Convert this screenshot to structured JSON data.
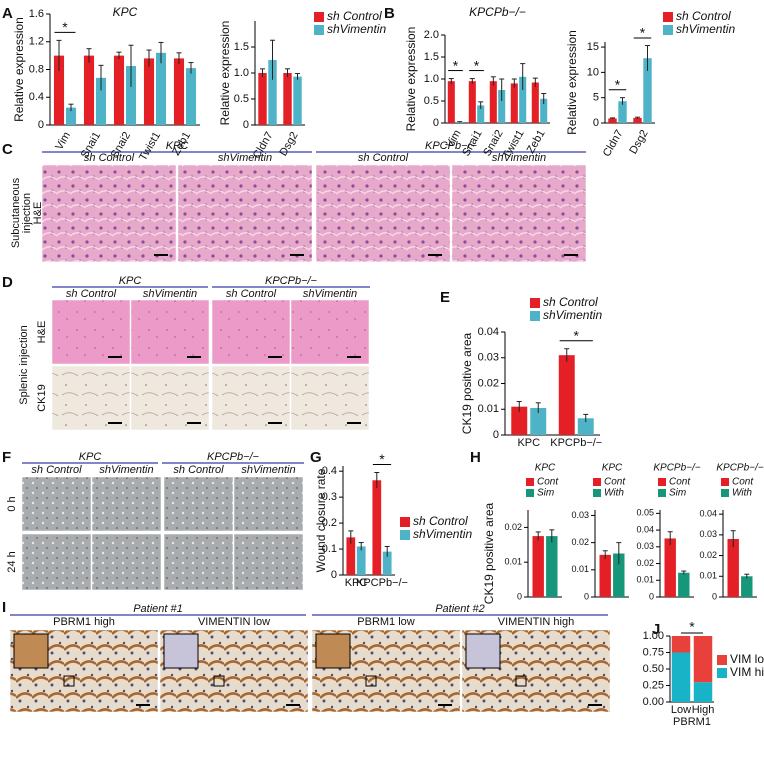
{
  "panel_letters": [
    "A",
    "B",
    "C",
    "D",
    "E",
    "F",
    "G",
    "H",
    "I",
    "J"
  ],
  "panel_C": {
    "groups": [
      {
        "label": "KPC",
        "subs": [
          "sh Control",
          "shVimentin"
        ]
      },
      {
        "label": "KPCPb−/−",
        "subs": [
          "sh Control",
          "shVimentin"
        ]
      }
    ],
    "row_labels": [
      "Subcutaneous",
      "injection",
      "H&E"
    ]
  },
  "panel_D": {
    "groups": [
      {
        "label": "KPC",
        "subs": [
          "sh Control",
          "shVimentin"
        ]
      },
      {
        "label": "KPCPb−/−",
        "subs": [
          "sh Control",
          "shVimentin"
        ]
      }
    ],
    "side_label": "Splenic injection",
    "row_labels": [
      "H&E",
      "CK19"
    ]
  },
  "panel_F": {
    "groups": [
      {
        "label": "KPC",
        "subs": [
          "sh Control",
          "shVimentin"
        ]
      },
      {
        "label": "KPCPb−/−",
        "subs": [
          "sh Control",
          "shVimentin"
        ]
      }
    ],
    "row_labels": [
      "0 h",
      "24 h"
    ]
  },
  "panel_I": {
    "groups": [
      {
        "label": "Patient #1",
        "subs": [
          "PBRM1 high",
          "VIMENTIN low"
        ]
      },
      {
        "label": "Patient #2",
        "subs": [
          "PBRM1 low",
          "VIMENTIN high"
        ]
      }
    ]
  },
  "chart_data": [
    {
      "type": "bar",
      "title": "KPC",
      "ylabel": "Relative expression",
      "categories": [
        "Vim",
        "Snai1",
        "Snai2",
        "Twist1",
        "Zeb1"
      ],
      "series": [
        {
          "name": "sh Control",
          "color": "#e41f26",
          "values": [
            1.0,
            1.0,
            1.0,
            0.96,
            0.96
          ],
          "errors": [
            0.22,
            0.1,
            0.05,
            0.12,
            0.08
          ]
        },
        {
          "name": "shVimentin",
          "color": "#4fb3c8",
          "values": [
            0.25,
            0.68,
            0.85,
            1.04,
            0.82
          ],
          "errors": [
            0.05,
            0.18,
            0.3,
            0.15,
            0.08
          ]
        }
      ],
      "ylim": [
        0,
        1.6
      ],
      "yticks": [
        0,
        0.4,
        0.8,
        1.2,
        1.6
      ],
      "legend": false,
      "annotations": [
        {
          "text": "*",
          "category": "Vim"
        }
      ]
    },
    {
      "type": "bar",
      "ylabel": "Relative expression",
      "categories": [
        "Cldn7",
        "Dsg2"
      ],
      "series": [
        {
          "name": "sh Control",
          "color": "#e41f26",
          "values": [
            1.0,
            1.0
          ],
          "errors": [
            0.08,
            0.08
          ]
        },
        {
          "name": "shVimentin",
          "color": "#4fb3c8",
          "values": [
            1.25,
            0.93
          ],
          "errors": [
            0.38,
            0.06
          ]
        }
      ],
      "ylim": [
        0,
        2
      ],
      "yticks": [
        0,
        0.5,
        {
          "value": 1,
          "label": "1.0"
        },
        1.5
      ],
      "legend": true,
      "annotations": []
    },
    {
      "type": "bar",
      "title": "KPCPb−/−",
      "ylabel": "Relative expression",
      "categories": [
        "Vim",
        "Snai1",
        "Snai2",
        "Twist1",
        "Zeb1"
      ],
      "series": [
        {
          "name": "sh Control",
          "color": "#e41f26",
          "values": [
            0.95,
            0.95,
            0.95,
            0.9,
            0.92
          ],
          "errors": [
            0.06,
            0.06,
            0.1,
            0.1,
            0.1
          ]
        },
        {
          "name": "shVimentin",
          "color": "#4fb3c8",
          "values": [
            0.02,
            0.4,
            0.75,
            1.05,
            0.55
          ],
          "errors": [
            0.01,
            0.08,
            0.25,
            0.3,
            0.12
          ]
        }
      ],
      "ylim": [
        0,
        2
      ],
      "yticks": [
        0,
        0.5,
        {
          "value": 1,
          "label": "1.0"
        },
        1.5,
        {
          "value": 2,
          "label": "2.0"
        }
      ],
      "legend": false,
      "annotations": [
        {
          "text": "*",
          "category": "Vim"
        },
        {
          "text": "*",
          "category": "Snai1"
        }
      ]
    },
    {
      "type": "bar",
      "ylabel": "Relative expression",
      "categories": [
        "Cldn7",
        "Dsg2"
      ],
      "series": [
        {
          "name": "sh Control",
          "color": "#e41f26",
          "values": [
            0.9,
            1.0
          ],
          "errors": [
            0.1,
            0.15
          ]
        },
        {
          "name": "shVimentin",
          "color": "#4fb3c8",
          "values": [
            4.3,
            12.8
          ],
          "errors": [
            0.7,
            2.5
          ]
        }
      ],
      "ylim": [
        0,
        16
      ],
      "yticks": [
        0,
        5,
        10,
        15
      ],
      "legend": true,
      "annotations": [
        {
          "text": "*",
          "category": "Cldn7"
        },
        {
          "text": "*",
          "category": "Dsg2"
        }
      ]
    },
    {
      "type": "bar",
      "ylabel": "CK19 positive area",
      "categories": [
        "KPC",
        "KPCPb−/−"
      ],
      "series": [
        {
          "name": "sh Control",
          "color": "#e41f26",
          "values": [
            0.011,
            0.031
          ],
          "errors": [
            0.002,
            0.0025
          ]
        },
        {
          "name": "shVimentin",
          "color": "#4fb3c8",
          "values": [
            0.0105,
            0.0065
          ],
          "errors": [
            0.002,
            0.0015
          ]
        }
      ],
      "ylim": [
        0,
        0.04
      ],
      "yticks": [
        0,
        0.01,
        0.02,
        0.03,
        0.04
      ],
      "legend": true,
      "annotations": [
        {
          "text": "*",
          "category": "KPCPb−/−"
        }
      ]
    },
    {
      "type": "bar",
      "ylabel": "Wound closure rate",
      "categories": [
        "KPC",
        "KPCPb−/−"
      ],
      "series": [
        {
          "name": "sh Control",
          "color": "#e41f26",
          "values": [
            0.145,
            0.365
          ],
          "errors": [
            0.025,
            0.03
          ]
        },
        {
          "name": "shVimentin",
          "color": "#4fb3c8",
          "values": [
            0.11,
            0.09
          ],
          "errors": [
            0.015,
            0.02
          ]
        }
      ],
      "ylim": [
        0,
        0.42
      ],
      "yticks": [
        0,
        0.1,
        0.2,
        0.3,
        0.4
      ],
      "legend": true,
      "annotations": [
        {
          "text": "*",
          "category": "KPCPb−/−"
        }
      ]
    },
    {
      "type": "bar",
      "title": "KPC",
      "ylabel": "CK19 positive area",
      "categories": [
        null
      ],
      "series": [
        {
          "name": "Cont",
          "color": "#e41f26",
          "values": [
            0.0175
          ],
          "errors": [
            0.0012
          ]
        },
        {
          "name": "Sim",
          "color": "#16977a",
          "values": [
            0.0175
          ],
          "errors": [
            0.0018
          ]
        }
      ],
      "ylim": [
        0,
        0.025
      ],
      "yticks": [
        0,
        0.01,
        0.02
      ],
      "legend": true,
      "annotations": []
    },
    {
      "type": "bar",
      "title": "KPC",
      "categories": [
        null
      ],
      "series": [
        {
          "name": "Cont",
          "color": "#e41f26",
          "values": [
            0.0155
          ],
          "errors": [
            0.0015
          ]
        },
        {
          "name": "With",
          "color": "#16977a",
          "values": [
            0.016
          ],
          "errors": [
            0.004
          ]
        }
      ],
      "ylim": [
        0,
        0.032
      ],
      "yticks": [
        0,
        0.01,
        0.02,
        0.03
      ],
      "legend": true,
      "annotations": []
    },
    {
      "type": "bar",
      "title": "KPCPb−/−",
      "categories": [
        null
      ],
      "series": [
        {
          "name": "Cont",
          "color": "#e41f26",
          "values": [
            0.035
          ],
          "errors": [
            0.004
          ]
        },
        {
          "name": "Sim",
          "color": "#16977a",
          "values": [
            0.0145
          ],
          "errors": [
            0.001
          ]
        }
      ],
      "ylim": [
        0,
        0.052
      ],
      "yticks": [
        0,
        0.01,
        0.02,
        0.03,
        0.04,
        0.05
      ],
      "legend": true,
      "annotations": []
    },
    {
      "type": "bar",
      "title": "KPCPb−/−",
      "categories": [
        null
      ],
      "series": [
        {
          "name": "Cont",
          "color": "#e41f26",
          "values": [
            0.028
          ],
          "errors": [
            0.004
          ]
        },
        {
          "name": "With",
          "color": "#16977a",
          "values": [
            0.01
          ],
          "errors": [
            0.001
          ]
        }
      ],
      "ylim": [
        0,
        0.042
      ],
      "yticks": [
        0,
        0.01,
        0.02,
        0.03,
        0.04
      ],
      "legend": true,
      "annotations": []
    },
    {
      "type": "stacked_bar",
      "xlabel": "PBRM1",
      "categories": [
        "Low",
        "High"
      ],
      "series": [
        {
          "name": "VIM high",
          "color": "#19b3c8",
          "values": [
            0.75,
            0.3
          ]
        },
        {
          "name": "VIM low",
          "color": "#e8403a",
          "values": [
            0.25,
            0.7
          ]
        }
      ],
      "ylim": [
        0,
        1
      ],
      "yticks": [
        {
          "value": 0,
          "label": "0.00"
        },
        0.25,
        {
          "value": 0.5,
          "label": "0.50"
        },
        0.75,
        {
          "value": 1,
          "label": "1.00"
        }
      ],
      "legend": true,
      "annotations": [
        {
          "text": "*"
        }
      ]
    }
  ]
}
